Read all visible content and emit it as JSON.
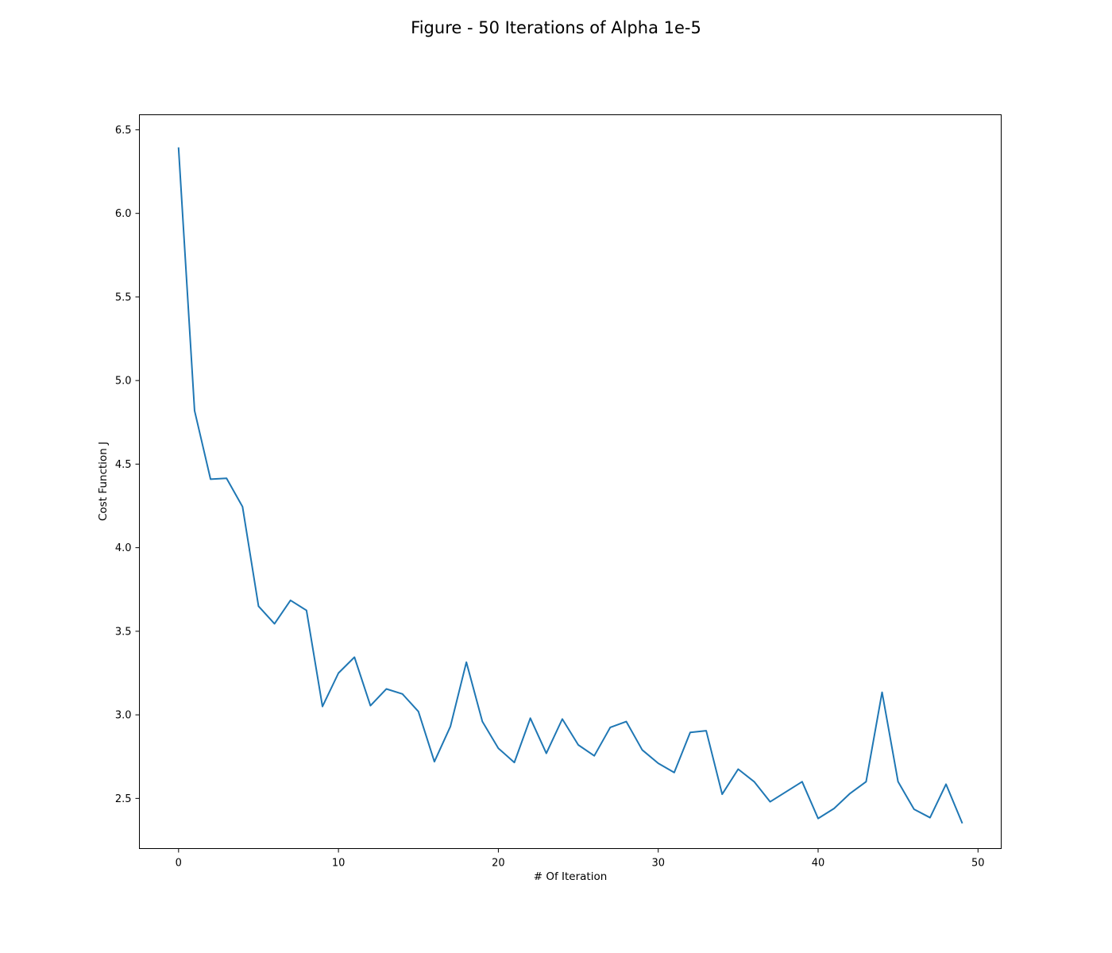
{
  "chart_data": {
    "type": "line",
    "title": "Figure - 50 Iterations of Alpha 1e-5",
    "xlabel": "# Of Iteration",
    "ylabel": "Cost Function J",
    "xlim": [
      -2.45,
      51.45
    ],
    "ylim": [
      2.2,
      6.59
    ],
    "xticks": [
      0,
      10,
      20,
      30,
      40,
      50
    ],
    "yticks": [
      2.5,
      3.0,
      3.5,
      4.0,
      4.5,
      5.0,
      5.5,
      6.0,
      6.5
    ],
    "xtick_labels": [
      "0",
      "10",
      "20",
      "30",
      "40",
      "50"
    ],
    "ytick_labels": [
      "2.5",
      "3.0",
      "3.5",
      "4.0",
      "4.5",
      "5.0",
      "5.5",
      "6.0",
      "6.5"
    ],
    "grid": false,
    "line_color": "#1f77b4",
    "x": [
      0,
      1,
      2,
      3,
      4,
      5,
      6,
      7,
      8,
      9,
      10,
      11,
      12,
      13,
      14,
      15,
      16,
      17,
      18,
      19,
      20,
      21,
      22,
      23,
      24,
      25,
      26,
      27,
      28,
      29,
      30,
      31,
      32,
      33,
      34,
      35,
      36,
      37,
      38,
      39,
      40,
      41,
      42,
      43,
      44,
      45,
      46,
      47,
      48,
      49
    ],
    "values": [
      6.39,
      4.82,
      4.41,
      4.415,
      4.245,
      3.65,
      3.545,
      3.685,
      3.625,
      3.05,
      3.25,
      3.345,
      3.055,
      3.155,
      3.125,
      3.02,
      2.72,
      2.93,
      3.315,
      2.96,
      2.8,
      2.715,
      2.98,
      2.77,
      2.975,
      2.82,
      2.755,
      2.925,
      2.96,
      2.79,
      2.71,
      2.655,
      2.895,
      2.905,
      2.525,
      2.675,
      2.6,
      2.48,
      2.54,
      2.6,
      2.38,
      2.44,
      2.53,
      2.6,
      3.135,
      2.6,
      2.435,
      2.385,
      2.585,
      2.355
    ]
  }
}
